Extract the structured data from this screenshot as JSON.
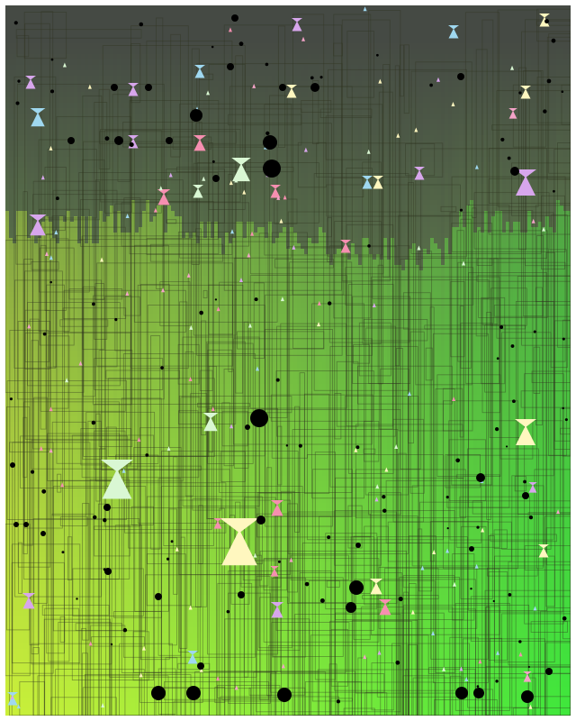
{
  "artwork": {
    "palette": {
      "top": "#454a44",
      "mid": "#5d7a4a",
      "bottom_left": "#ccf03a",
      "bottom_right": "#3ee83c",
      "outline": "#2e3320",
      "frame": "#ffffff"
    },
    "marker_colors": [
      "#f4a3c8",
      "#9fd8f0",
      "#fff7bf",
      "#d9f7d3",
      "#d7a6ec",
      "#f58fb0"
    ],
    "dot_color": "#000000"
  }
}
